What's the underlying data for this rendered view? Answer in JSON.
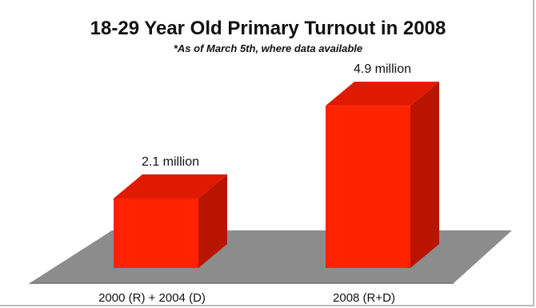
{
  "chart_data": {
    "type": "bar",
    "title": "18-29 Year Old Primary Turnout in 2008",
    "subtitle": "*As of March 5th, where data available",
    "categories": [
      "2000 (R) + 2004 (D)",
      "2008 (R+D)"
    ],
    "values": [
      2.1,
      4.9
    ],
    "data_labels": [
      "2.1 million",
      "4.9 million"
    ],
    "unit": "million",
    "ylim": [
      0,
      5
    ],
    "grid": false,
    "legend": "none",
    "style": "3d",
    "colors": {
      "bar_front": "#ff2200",
      "bar_top": "#e01a00",
      "bar_side": "#b81400",
      "floor": "#8c8c8c"
    }
  }
}
